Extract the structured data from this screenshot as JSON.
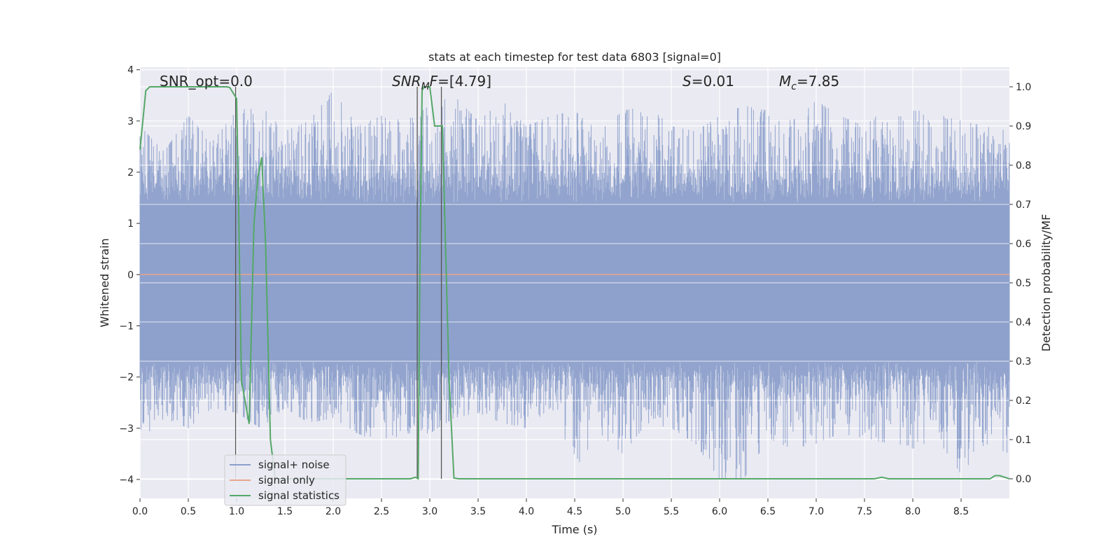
{
  "chart_data": {
    "type": "line",
    "title": "stats at each timestep for test data 6803 [signal=0]",
    "xlabel": "Time (s)",
    "ylabel_left": "Whitened strain",
    "ylabel_right": "Detection probability/MF",
    "xlim": [
      0.0,
      9.0
    ],
    "ylim_left": [
      -4.37,
      4.05
    ],
    "ylim_right": [
      -0.05,
      1.05
    ],
    "x_ticks": [
      "0.0",
      "0.5",
      "1.0",
      "1.5",
      "2.0",
      "2.5",
      "3.0",
      "3.5",
      "4.0",
      "4.5",
      "5.0",
      "5.5",
      "6.0",
      "6.5",
      "7.0",
      "7.5",
      "8.0",
      "8.5"
    ],
    "y_ticks_left": [
      "−4",
      "−3",
      "−2",
      "−1",
      "0",
      "1",
      "2",
      "3",
      "4"
    ],
    "y_ticks_right": [
      "0.0",
      "0.1",
      "0.2",
      "0.3",
      "0.4",
      "0.5",
      "0.6",
      "0.7",
      "0.8",
      "0.9",
      "1.0"
    ],
    "grid": true,
    "legend_position": "lower-left",
    "colors": {
      "signal_noise": "#8da0cb",
      "signal_only": "#e8a58b",
      "signal_statistics": "#55a868",
      "vline": "#555555",
      "background": "#eaeaf2"
    },
    "annotations": {
      "snr_opt": "SNR_opt=0.0",
      "snr_mf_prefix": "SNR",
      "snr_mf_sub": "M",
      "snr_mf_mid": "F",
      "snr_mf_value": "=[4.79]",
      "s_sym": "S",
      "s_value": "=0.01",
      "mc_sym": "M",
      "mc_sub": "c",
      "mc_value": "=7.85"
    },
    "series": [
      {
        "name": "signal+ noise",
        "noise_envelope": {
          "x": [
            0.0,
            0.25,
            0.5,
            0.75,
            1.0,
            1.25,
            1.5,
            1.75,
            2.0,
            2.25,
            2.5,
            2.75,
            3.0,
            3.25,
            3.5,
            3.75,
            4.0,
            4.25,
            4.5,
            4.75,
            5.0,
            5.25,
            5.5,
            5.75,
            6.0,
            6.25,
            6.5,
            6.75,
            7.0,
            7.25,
            7.5,
            7.75,
            8.0,
            8.25,
            8.5,
            8.75,
            9.0
          ],
          "upper": [
            2.9,
            2.4,
            3.1,
            2.6,
            3.2,
            3.3,
            2.8,
            3.0,
            3.6,
            2.9,
            3.1,
            3.0,
            3.3,
            3.5,
            3.0,
            3.4,
            2.9,
            3.1,
            3.2,
            2.8,
            3.2,
            3.3,
            2.9,
            2.8,
            3.1,
            3.3,
            3.2,
            3.0,
            3.4,
            3.1,
            2.9,
            3.3,
            3.2,
            3.2,
            3.0,
            2.9,
            2.8
          ],
          "lower": [
            -3.3,
            -2.8,
            -3.0,
            -2.6,
            -2.7,
            -3.0,
            -2.6,
            -2.9,
            -2.8,
            -3.1,
            -3.3,
            -3.1,
            -3.1,
            -2.8,
            -2.7,
            -2.9,
            -3.0,
            -2.6,
            -3.8,
            -3.1,
            -3.5,
            -2.9,
            -3.0,
            -3.3,
            -4.0,
            -4.0,
            -3.2,
            -3.4,
            -3.3,
            -3.1,
            -3.2,
            -3.3,
            -3.4,
            -3.2,
            -3.9,
            -3.3,
            -3.5
          ],
          "core_upper": 1.4,
          "core_lower": -1.7
        }
      },
      {
        "name": "signal only",
        "x": [
          0.0,
          9.0
        ],
        "y": [
          0.0,
          0.0
        ]
      },
      {
        "name": "signal statistics",
        "x": [
          0.0,
          0.06,
          0.1,
          0.9,
          0.93,
          1.0,
          1.02,
          1.05,
          1.08,
          1.13,
          1.18,
          1.22,
          1.26,
          1.3,
          1.35,
          1.4,
          1.5,
          2.8,
          2.85,
          2.88,
          2.9,
          2.92,
          2.94,
          2.97,
          3.0,
          3.05,
          3.13,
          3.2,
          3.25,
          3.3,
          4.0,
          7.6,
          7.68,
          7.75,
          8.8,
          8.85,
          8.9,
          9.0
        ],
        "y": [
          0.84,
          0.99,
          1.0,
          1.0,
          0.998,
          0.97,
          0.7,
          0.25,
          0.21,
          0.14,
          0.65,
          0.77,
          0.82,
          0.6,
          0.1,
          0.0,
          0.0,
          0.0,
          0.004,
          0.0,
          0.6,
          0.99,
          1.0,
          1.0,
          1.0,
          0.9,
          0.9,
          0.25,
          0.002,
          0.0,
          0.0,
          0.0,
          0.004,
          0.0,
          0.0,
          0.008,
          0.008,
          0.0
        ]
      }
    ],
    "vlines_x": [
      0.99,
      2.87,
      3.12
    ]
  }
}
